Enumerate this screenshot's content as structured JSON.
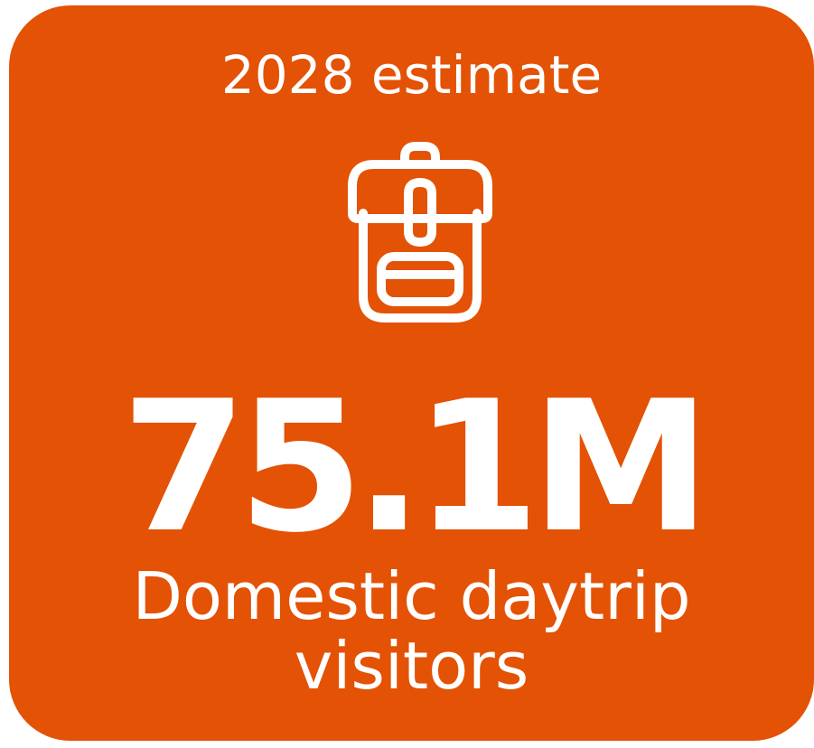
{
  "card": {
    "subtitle": "2028 estimate",
    "icon": "backpack-icon",
    "value": "75.1M",
    "caption_line1": "Domestic daytrip",
    "caption_line2": "visitors"
  },
  "colors": {
    "card_background": "#e35205",
    "text": "#ffffff"
  }
}
